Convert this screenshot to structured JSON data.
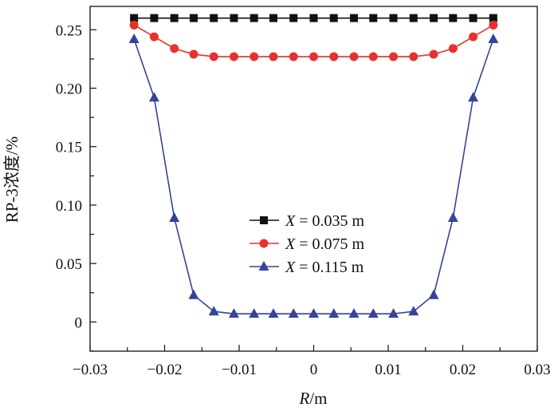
{
  "chart_data": {
    "type": "line",
    "xlabel_italic": "R",
    "xlabel_rest": "/m",
    "ylabel": "RP-3浓度/%",
    "xlim": [
      -0.03,
      0.03
    ],
    "ylim": [
      -0.025,
      0.27
    ],
    "xticks": [
      "−0.03",
      "−0.02",
      "−0.01",
      "0",
      "0.01",
      "0.02",
      "0.03"
    ],
    "xtick_values": [
      -0.03,
      -0.02,
      -0.01,
      0,
      0.01,
      0.02,
      0.03
    ],
    "yticks": [
      "0",
      "0.05",
      "0.10",
      "0.15",
      "0.20",
      "0.25"
    ],
    "ytick_values": [
      0,
      0.05,
      0.1,
      0.15,
      0.2,
      0.25
    ],
    "grid": false,
    "legend_placement": "center",
    "x": [
      -0.0241,
      -0.0214,
      -0.0187,
      -0.0161,
      -0.0134,
      -0.0107,
      -0.008,
      -0.0054,
      -0.0027,
      0,
      0.0027,
      0.0054,
      0.008,
      0.0107,
      0.0134,
      0.0161,
      0.0187,
      0.0214,
      0.0241
    ],
    "series": [
      {
        "name_italic": "X",
        "name_rest": " = 0.035 m",
        "color": "#111111",
        "marker": "square",
        "values": [
          0.26,
          0.26,
          0.26,
          0.26,
          0.26,
          0.26,
          0.26,
          0.26,
          0.26,
          0.26,
          0.26,
          0.26,
          0.26,
          0.26,
          0.26,
          0.26,
          0.26,
          0.26,
          0.26
        ]
      },
      {
        "name_italic": "X",
        "name_rest": " = 0.075 m",
        "color": "#e8312c",
        "marker": "circle",
        "values": [
          0.254,
          0.244,
          0.234,
          0.229,
          0.227,
          0.227,
          0.227,
          0.227,
          0.227,
          0.227,
          0.227,
          0.227,
          0.227,
          0.227,
          0.227,
          0.229,
          0.234,
          0.244,
          0.254
        ]
      },
      {
        "name_italic": "X",
        "name_rest": " = 0.115 m",
        "color": "#33449a",
        "marker": "triangle",
        "values": [
          0.242,
          0.192,
          0.089,
          0.023,
          0.009,
          0.007,
          0.007,
          0.007,
          0.007,
          0.007,
          0.007,
          0.007,
          0.007,
          0.007,
          0.009,
          0.023,
          0.089,
          0.192,
          0.242
        ]
      }
    ]
  }
}
